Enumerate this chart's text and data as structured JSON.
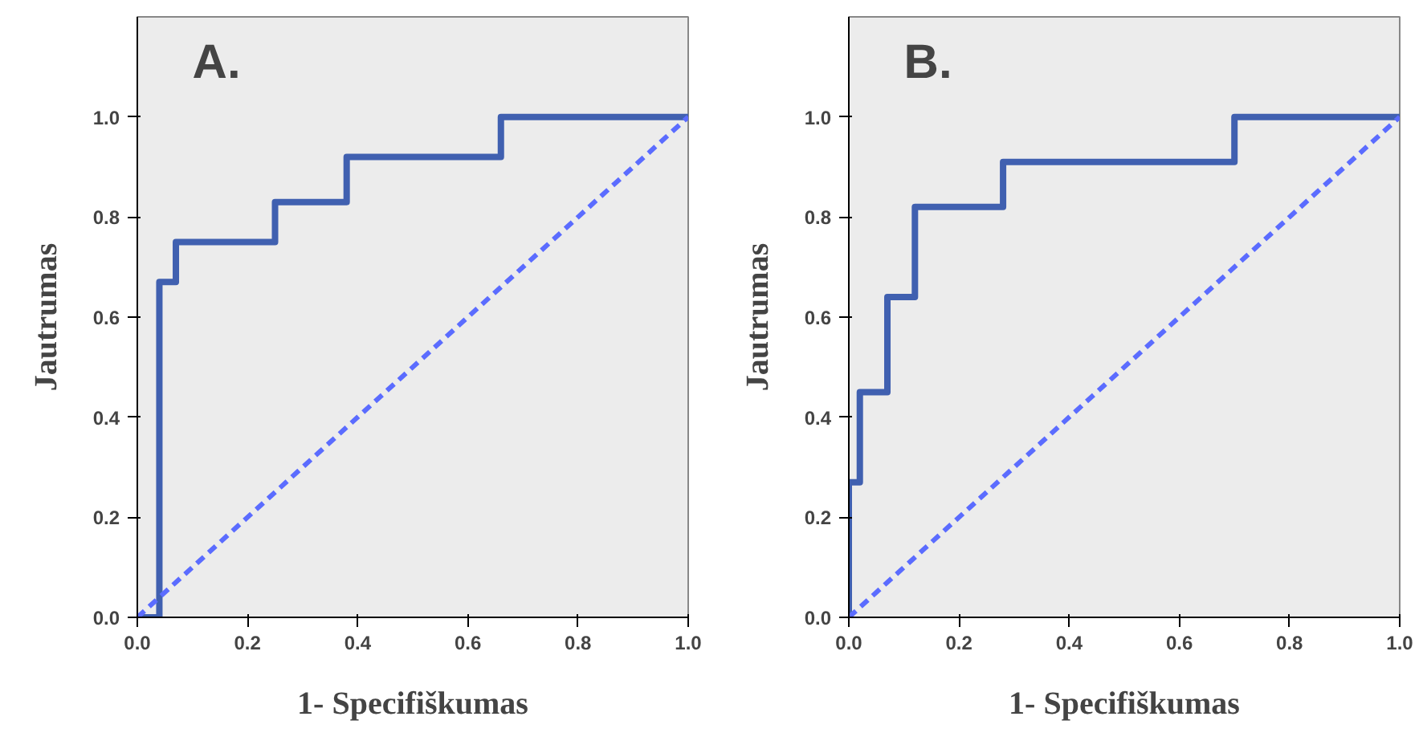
{
  "chart_data": [
    {
      "type": "line",
      "xlabel": "1- Specifiškumas",
      "ylabel": "Jautrumas",
      "annotations": [
        "A."
      ],
      "xlim": [
        0,
        1
      ],
      "ylim": [
        0,
        1.2
      ],
      "xticks": [
        {
          "value": 0,
          "label": "0.0"
        },
        {
          "value": 0.2,
          "label": "0.2"
        },
        {
          "value": 0.4,
          "label": "0.4"
        },
        {
          "value": 0.6,
          "label": "0.6"
        },
        {
          "value": 0.8,
          "label": "0.8"
        },
        {
          "value": 1,
          "label": "1.0"
        }
      ],
      "yticks": [
        {
          "value": 0,
          "label": "0.0"
        },
        {
          "value": 0.2,
          "label": "0.2"
        },
        {
          "value": 0.4,
          "label": "0.4"
        },
        {
          "value": 0.6,
          "label": "0.6"
        },
        {
          "value": 0.8,
          "label": "0.8"
        },
        {
          "value": 1,
          "label": "1.0"
        }
      ],
      "series": [
        {
          "color": "#4060b0",
          "line_style": "solid",
          "x": [
            0,
            0.04,
            0.04,
            0.07,
            0.07,
            0.25,
            0.25,
            0.38,
            0.38,
            0.66,
            0.66,
            1
          ],
          "values": [
            0,
            0,
            0.67,
            0.67,
            0.75,
            0.75,
            0.83,
            0.83,
            0.92,
            0.92,
            1,
            1
          ]
        },
        {
          "color": "#5b6cff",
          "line_style": "dashed",
          "x": [
            0,
            1
          ],
          "values": [
            0,
            1
          ]
        }
      ]
    },
    {
      "type": "line",
      "xlabel": "1- Specifiškumas",
      "ylabel": "Jautrumas",
      "annotations": [
        "B."
      ],
      "xlim": [
        0,
        1
      ],
      "ylim": [
        0,
        1.2
      ],
      "xticks": [
        {
          "value": 0,
          "label": "0.0"
        },
        {
          "value": 0.2,
          "label": "0.2"
        },
        {
          "value": 0.4,
          "label": "0.4"
        },
        {
          "value": 0.6,
          "label": "0.6"
        },
        {
          "value": 0.8,
          "label": "0.8"
        },
        {
          "value": 1,
          "label": "1.0"
        }
      ],
      "yticks": [
        {
          "value": 0,
          "label": "0.0"
        },
        {
          "value": 0.2,
          "label": "0.2"
        },
        {
          "value": 0.4,
          "label": "0.4"
        },
        {
          "value": 0.6,
          "label": "0.6"
        },
        {
          "value": 0.8,
          "label": "0.8"
        },
        {
          "value": 1,
          "label": "1.0"
        }
      ],
      "series": [
        {
          "color": "#4060b0",
          "line_style": "solid",
          "x": [
            0,
            0,
            0.02,
            0.02,
            0.07,
            0.07,
            0.12,
            0.12,
            0.28,
            0.28,
            0.7,
            0.7,
            1
          ],
          "values": [
            0,
            0.27,
            0.27,
            0.45,
            0.45,
            0.64,
            0.64,
            0.82,
            0.82,
            0.91,
            0.91,
            1,
            1
          ]
        },
        {
          "color": "#5b6cff",
          "line_style": "dashed",
          "x": [
            0,
            1
          ],
          "values": [
            0,
            1
          ]
        }
      ]
    }
  ]
}
